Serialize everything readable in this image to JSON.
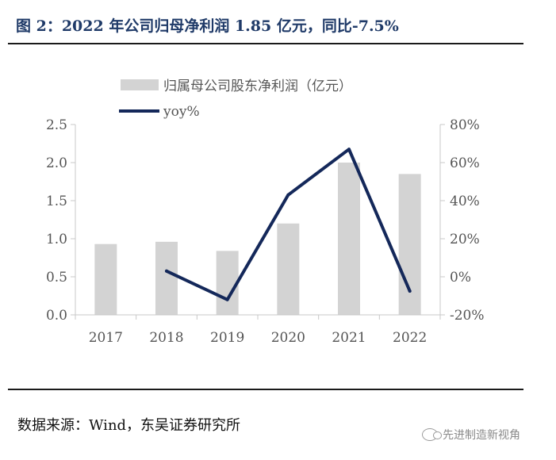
{
  "title": "图 2：2022 年公司归母净利润 1.85 亿元，同比-7.5%",
  "source": "数据来源：Wind，东吴证券研究所",
  "watermark": "先进制造新视角",
  "colors": {
    "bar": "#d3d3d3",
    "line": "#14285a",
    "title": "#1f3a68"
  },
  "chart_data": {
    "type": "bar",
    "categories": [
      "2017",
      "2018",
      "2019",
      "2020",
      "2021",
      "2022"
    ],
    "series": [
      {
        "name": "归属母公司股东净利润（亿元）",
        "type": "bar",
        "axis": "left",
        "values": [
          0.93,
          0.96,
          0.84,
          1.2,
          2.0,
          1.85
        ]
      },
      {
        "name": "yoy%",
        "type": "line",
        "axis": "right",
        "values": [
          null,
          3,
          -12,
          43,
          67,
          -7.5
        ]
      }
    ],
    "y_left": {
      "min": 0,
      "max": 2.5,
      "ticks": [
        "0.0",
        "0.5",
        "1.0",
        "1.5",
        "2.0",
        "2.5"
      ]
    },
    "y_right": {
      "min": -20,
      "max": 80,
      "ticks": [
        "-20%",
        "0%",
        "20%",
        "40%",
        "60%",
        "80%"
      ]
    },
    "legend_position": "top-center"
  }
}
